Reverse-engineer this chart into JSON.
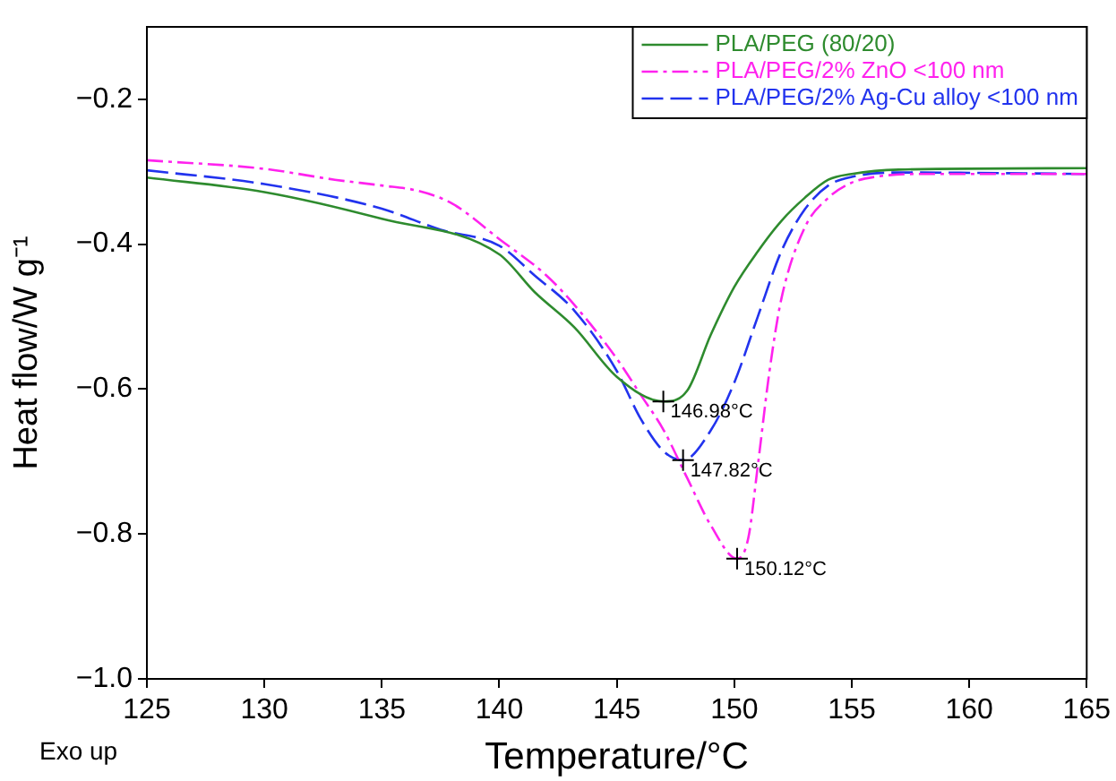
{
  "chart_data": {
    "type": "line",
    "xlabel": "Temperature/°C",
    "ylabel": "Heat flow/W g⁻¹",
    "xlim": [
      125,
      165
    ],
    "xticks": [
      125,
      130,
      135,
      140,
      145,
      150,
      155,
      160,
      165
    ],
    "ylim": [
      -1.0,
      -0.1
    ],
    "yticks": [
      {
        "value": -1.0,
        "label": "−1.0"
      },
      {
        "value": -0.8,
        "label": "−0.8"
      },
      {
        "value": -0.6,
        "label": "−0.6"
      },
      {
        "value": -0.4,
        "label": "−0.4"
      },
      {
        "value": -0.2,
        "label": "−0.2"
      }
    ],
    "grid": false,
    "legend": "top right",
    "marker": "none",
    "series": [
      {
        "name": "PLA/PEG (80/20)",
        "color": "#2e8b2e",
        "line_style": "solid",
        "x": [
          125,
          130,
          135,
          140,
          141.5,
          143.2,
          145,
          146.98,
          148,
          149,
          150,
          151,
          152,
          153,
          154,
          155,
          157,
          165
        ],
        "values": [
          -0.308,
          -0.328,
          -0.365,
          -0.414,
          -0.466,
          -0.515,
          -0.583,
          -0.617,
          -0.602,
          -0.525,
          -0.459,
          -0.41,
          -0.368,
          -0.336,
          -0.311,
          -0.303,
          -0.297,
          -0.295
        ]
      },
      {
        "name": "PLA/PEG/2% ZnO <100 nm",
        "color": "#ff22ee",
        "line_style": "dashdot",
        "x": [
          125,
          130,
          133,
          135,
          136.5,
          138,
          140,
          142,
          143.2,
          145,
          146,
          147,
          148,
          149,
          150.12,
          150.6,
          151,
          151.5,
          152,
          153,
          154,
          155,
          156,
          158,
          165
        ],
        "values": [
          -0.284,
          -0.296,
          -0.311,
          -0.319,
          -0.326,
          -0.344,
          -0.393,
          -0.443,
          -0.484,
          -0.558,
          -0.607,
          -0.657,
          -0.723,
          -0.788,
          -0.834,
          -0.805,
          -0.706,
          -0.575,
          -0.476,
          -0.377,
          -0.336,
          -0.315,
          -0.307,
          -0.303,
          -0.303
        ]
      },
      {
        "name": "PLA/PEG/2% Ag-Cu alloy <100 nm",
        "color": "#2233ee",
        "line_style": "dashed",
        "x": [
          125,
          130,
          135,
          137.5,
          140,
          141.5,
          143.2,
          145,
          146,
          147,
          147.82,
          149,
          150,
          151,
          152,
          153,
          154,
          155,
          157,
          165
        ],
        "values": [
          -0.298,
          -0.317,
          -0.351,
          -0.38,
          -0.402,
          -0.443,
          -0.492,
          -0.575,
          -0.64,
          -0.686,
          -0.698,
          -0.657,
          -0.591,
          -0.5,
          -0.41,
          -0.352,
          -0.319,
          -0.307,
          -0.301,
          -0.303
        ]
      }
    ],
    "annotations": [
      {
        "text": "146.98°C",
        "x": 146.98,
        "y": -0.617
      },
      {
        "text": "147.82°C",
        "x": 147.82,
        "y": -0.698
      },
      {
        "text": "150.12°C",
        "x": 150.12,
        "y": -0.834
      },
      "Exo up"
    ]
  }
}
